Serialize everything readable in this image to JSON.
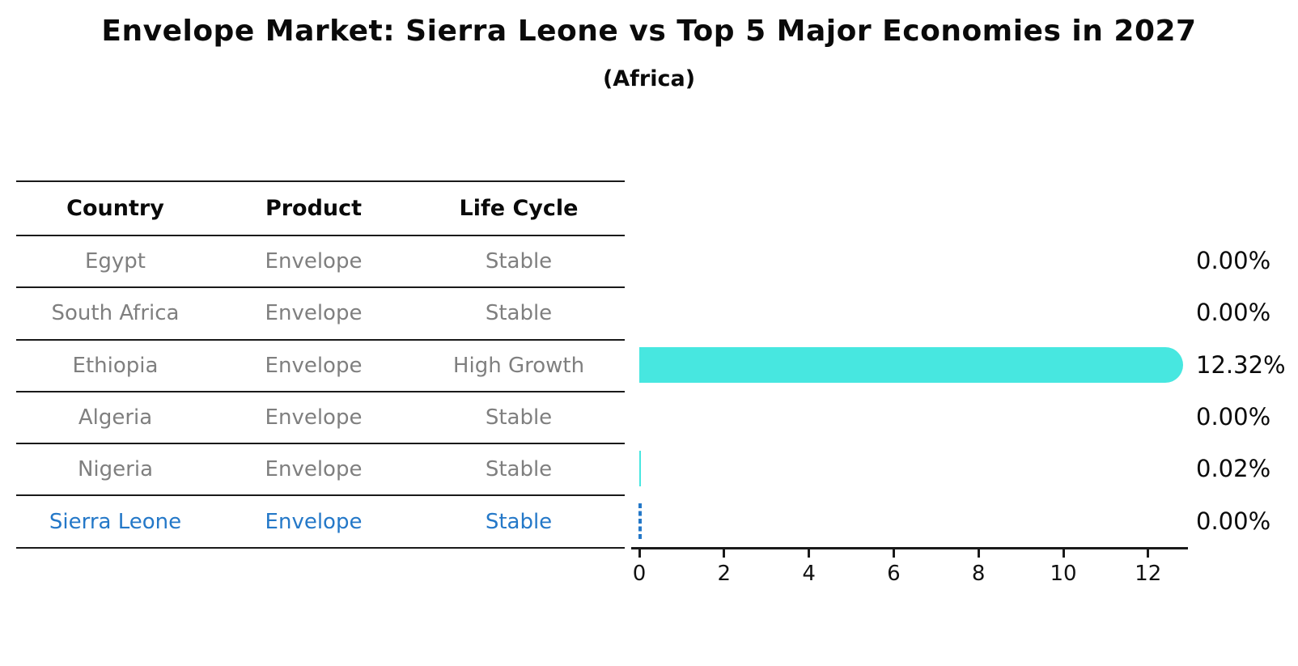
{
  "figure": {
    "title": "Envelope Market: Sierra Leone vs Top 5 Major Economies in 2027",
    "subtitle": "(Africa)"
  },
  "table": {
    "headers": [
      "Country",
      "Product",
      "Life Cycle"
    ],
    "rows": [
      {
        "country": "Egypt",
        "product": "Envelope",
        "life_cycle": "Stable",
        "highlighted": false
      },
      {
        "country": "South Africa",
        "product": "Envelope",
        "life_cycle": "Stable",
        "highlighted": false
      },
      {
        "country": "Ethiopia",
        "product": "Envelope",
        "life_cycle": "High Growth",
        "highlighted": false
      },
      {
        "country": "Algeria",
        "product": "Envelope",
        "life_cycle": "Stable",
        "highlighted": false
      },
      {
        "country": "Nigeria",
        "product": "Envelope",
        "life_cycle": "Stable",
        "highlighted": false
      },
      {
        "country": "Sierra Leone",
        "product": "Envelope",
        "life_cycle": "Stable",
        "highlighted": true
      }
    ]
  },
  "chart_data": {
    "type": "bar",
    "orientation": "horizontal",
    "title": "Envelope Market: Sierra Leone vs Top 5 Major Economies in 2027",
    "subtitle": "(Africa)",
    "categories": [
      "Egypt",
      "South Africa",
      "Ethiopia",
      "Algeria",
      "Nigeria",
      "Sierra Leone"
    ],
    "values": [
      0.0,
      0.0,
      12.32,
      0.0,
      0.02,
      0.0
    ],
    "value_labels": [
      "0.00%",
      "0.00%",
      "12.32%",
      "0.00%",
      "0.02%",
      "0.00%"
    ],
    "x_ticks": [
      0,
      2,
      4,
      6,
      8,
      10,
      12
    ],
    "xlim": [
      0,
      12.95
    ],
    "unit": "percent",
    "grid": false,
    "legend": false,
    "bar_color": "#47e7e0",
    "highlight_color": "#2478c8",
    "highlight_index": 5
  }
}
